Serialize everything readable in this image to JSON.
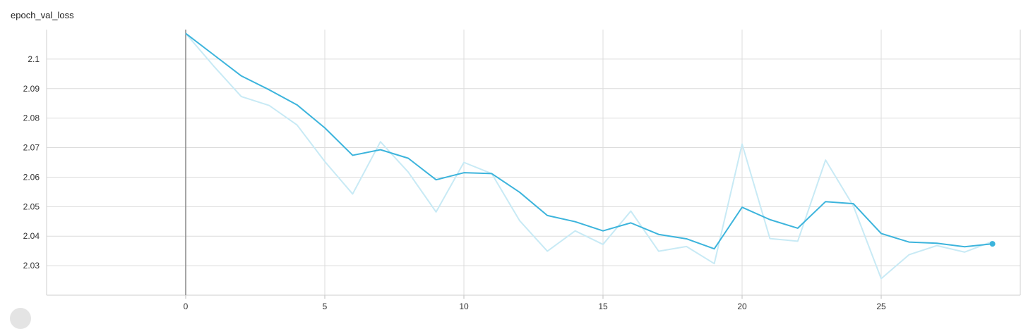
{
  "chart_data": {
    "type": "line",
    "title": "epoch_val_loss",
    "xlabel": "",
    "ylabel": "",
    "xlim": [
      -5,
      30
    ],
    "ylim": [
      2.02,
      2.11
    ],
    "xticks": [
      0,
      5,
      10,
      15,
      20,
      25
    ],
    "yticks": [
      2.03,
      2.04,
      2.05,
      2.06,
      2.07,
      2.08,
      2.09,
      2.1
    ],
    "grid": true,
    "colors": {
      "smoothed": "#3cb4dc",
      "raw": "#c8eaf5",
      "reference": "#888888"
    },
    "x": [
      0,
      1,
      2,
      3,
      4,
      5,
      6,
      7,
      8,
      9,
      10,
      11,
      12,
      13,
      14,
      15,
      16,
      17,
      18,
      19,
      20,
      21,
      22,
      23,
      24,
      25,
      26,
      27,
      28,
      29
    ],
    "series": [
      {
        "values": [
          2.1087,
          2.0977,
          2.0873,
          2.0843,
          2.0777,
          2.0653,
          2.0543,
          2.072,
          2.0617,
          2.0482,
          2.065,
          2.0612,
          2.0453,
          2.0349,
          2.0418,
          2.0372,
          2.0485,
          2.0349,
          2.0365,
          2.0307,
          2.0712,
          2.0392,
          2.0383,
          2.0658,
          2.0502,
          2.0256,
          2.0337,
          2.0368,
          2.0346,
          2.0382
        ]
      },
      {
        "values": [
          2.1087,
          2.1015,
          2.0943,
          2.0896,
          2.0845,
          2.0767,
          2.0674,
          2.0693,
          2.0664,
          2.0591,
          2.0615,
          2.0612,
          2.0549,
          2.047,
          2.0449,
          2.0418,
          2.0445,
          2.0406,
          2.0391,
          2.0357,
          2.0498,
          2.0456,
          2.0427,
          2.0517,
          2.051,
          2.0409,
          2.038,
          2.0376,
          2.0364,
          2.0374
        ]
      }
    ]
  }
}
